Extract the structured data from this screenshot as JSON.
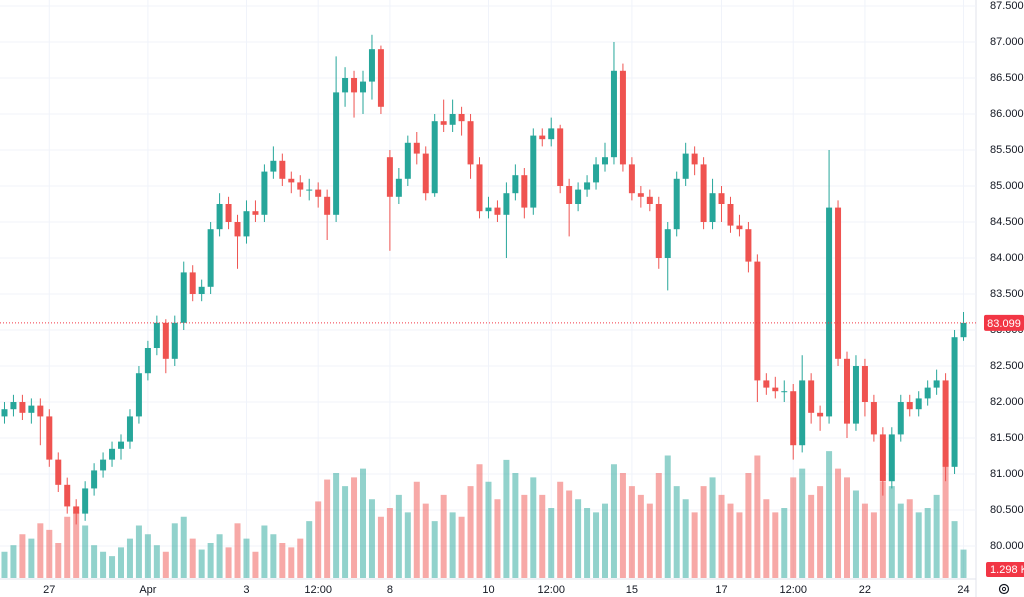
{
  "chart_data": {
    "type": "candlestick",
    "up_color": "#26a69a",
    "down_color": "#ef5350",
    "volume_up_color": "rgba(38,166,154,0.5)",
    "volume_down_color": "rgba(239,83,80,0.5)",
    "price_line_color": "#f23645",
    "grid": true,
    "ylim": [
      79.556,
      87.583
    ],
    "yticks": [
      {
        "value": 80,
        "label": "80.000"
      },
      {
        "value": 80.5,
        "label": "80.500"
      },
      {
        "value": 81,
        "label": "81.000"
      },
      {
        "value": 81.5,
        "label": "81.500"
      },
      {
        "value": 82,
        "label": "82.000"
      },
      {
        "value": 82.5,
        "label": "82.500"
      },
      {
        "value": 83,
        "label": "83.000"
      },
      {
        "value": 83.5,
        "label": "83.500"
      },
      {
        "value": 84,
        "label": "84.000"
      },
      {
        "value": 84.5,
        "label": "84.500"
      },
      {
        "value": 85,
        "label": "85.000"
      },
      {
        "value": 85.5,
        "label": "85.500"
      },
      {
        "value": 86,
        "label": "86.000"
      },
      {
        "value": 86.5,
        "label": "86.500"
      },
      {
        "value": 87,
        "label": "87.000"
      },
      {
        "value": 87.5,
        "label": "87.500"
      }
    ],
    "volume_lim": [
      0,
      8
    ],
    "last_volume_label": "1.298 K",
    "categories": [
      null,
      null,
      null,
      null,
      null,
      "27",
      null,
      null,
      null,
      null,
      null,
      null,
      null,
      null,
      null,
      null,
      "Apr",
      null,
      null,
      null,
      null,
      null,
      null,
      null,
      null,
      null,
      null,
      "3",
      null,
      null,
      null,
      null,
      null,
      null,
      null,
      "12:00",
      null,
      null,
      null,
      null,
      null,
      null,
      null,
      "8",
      null,
      null,
      null,
      null,
      null,
      null,
      null,
      null,
      null,
      null,
      "10",
      null,
      null,
      null,
      null,
      null,
      null,
      "12:00",
      null,
      null,
      null,
      null,
      null,
      null,
      null,
      null,
      "15",
      null,
      null,
      null,
      null,
      null,
      null,
      null,
      null,
      null,
      "17",
      null,
      null,
      null,
      null,
      null,
      null,
      null,
      "12:00",
      null,
      null,
      null,
      null,
      null,
      null,
      null,
      "22",
      null,
      null,
      null,
      null,
      null,
      null,
      null,
      null,
      null,
      null,
      "24"
    ],
    "open": [
      81.8,
      81.9,
      82.0,
      81.85,
      81.95,
      81.8,
      81.2,
      80.85,
      80.55,
      80.45,
      80.8,
      81.05,
      81.2,
      81.35,
      81.45,
      81.8,
      82.4,
      82.75,
      83.1,
      82.6,
      83.1,
      83.8,
      83.5,
      83.6,
      84.4,
      84.75,
      84.5,
      84.3,
      84.65,
      84.6,
      85.2,
      85.35,
      85.1,
      85.05,
      84.95,
      84.95,
      84.85,
      84.6,
      86.3,
      86.5,
      86.3,
      86.45,
      86.9,
      85.4,
      84.85,
      85.1,
      85.6,
      85.45,
      84.9,
      85.9,
      85.85,
      86.0,
      85.9,
      85.3,
      84.65,
      84.7,
      84.6,
      84.9,
      85.15,
      84.7,
      85.7,
      85.65,
      85.8,
      85.0,
      84.75,
      84.95,
      85.05,
      85.3,
      85.4,
      86.6,
      85.3,
      84.9,
      84.85,
      84.75,
      84.0,
      84.4,
      85.1,
      85.45,
      85.3,
      84.5,
      84.9,
      84.75,
      84.45,
      84.4,
      83.95,
      82.3,
      82.2,
      82.15,
      82.15,
      81.4,
      82.3,
      81.85,
      81.8,
      84.7,
      82.6,
      81.7,
      82.5,
      82.0,
      81.55,
      80.9,
      81.55,
      82.0,
      81.9,
      82.05,
      82.2,
      82.3,
      81.1,
      82.9
    ],
    "high": [
      82.0,
      82.1,
      82.1,
      82.05,
      82.05,
      81.9,
      81.3,
      80.95,
      80.65,
      80.9,
      81.15,
      81.3,
      81.45,
      81.55,
      81.9,
      82.5,
      82.85,
      83.2,
      83.15,
      83.2,
      83.95,
      83.9,
      83.7,
      84.5,
      84.9,
      84.85,
      84.6,
      84.8,
      84.8,
      85.3,
      85.55,
      85.45,
      85.2,
      85.15,
      85.1,
      85.05,
      84.95,
      86.8,
      86.65,
      86.6,
      86.6,
      87.1,
      86.95,
      85.5,
      85.25,
      85.7,
      85.75,
      85.55,
      86.0,
      86.2,
      86.2,
      86.1,
      86.0,
      85.4,
      84.85,
      84.8,
      85.05,
      85.3,
      85.25,
      85.8,
      85.8,
      85.95,
      85.85,
      85.1,
      85.05,
      85.15,
      85.4,
      85.6,
      87.0,
      86.7,
      85.4,
      85.0,
      84.95,
      84.85,
      84.5,
      85.2,
      85.6,
      85.55,
      85.4,
      85.1,
      85.0,
      84.85,
      84.6,
      84.5,
      84.05,
      82.4,
      82.35,
      82.3,
      82.25,
      82.65,
      82.4,
      81.95,
      85.5,
      84.8,
      82.7,
      82.65,
      82.6,
      82.1,
      81.65,
      81.65,
      82.1,
      82.1,
      82.15,
      82.3,
      82.45,
      82.4,
      83.0,
      83.25
    ],
    "low": [
      81.7,
      81.8,
      81.75,
      81.7,
      81.4,
      81.1,
      80.75,
      80.45,
      80.3,
      80.35,
      80.7,
      80.95,
      81.1,
      81.2,
      81.35,
      81.7,
      82.3,
      82.65,
      82.4,
      82.5,
      83.0,
      83.4,
      83.4,
      83.5,
      84.3,
      84.4,
      83.85,
      84.2,
      84.5,
      84.5,
      85.1,
      85.0,
      84.9,
      84.85,
      84.8,
      84.7,
      84.25,
      84.5,
      86.1,
      85.95,
      86.0,
      86.2,
      86.0,
      84.1,
      84.75,
      85.0,
      85.3,
      84.8,
      84.85,
      85.75,
      85.75,
      85.7,
      85.1,
      84.55,
      84.55,
      84.5,
      84.0,
      84.8,
      84.55,
      84.6,
      85.55,
      85.55,
      84.9,
      84.3,
      84.65,
      84.85,
      84.95,
      85.2,
      85.3,
      85.2,
      84.8,
      84.7,
      84.65,
      83.85,
      83.55,
      84.3,
      85.0,
      85.15,
      84.4,
      84.4,
      84.5,
      84.35,
      84.3,
      83.8,
      82.0,
      82.1,
      82.05,
      82.0,
      81.2,
      81.3,
      81.7,
      81.6,
      81.7,
      82.5,
      81.5,
      81.6,
      81.8,
      81.45,
      80.7,
      80.8,
      81.45,
      81.8,
      81.8,
      81.95,
      82.1,
      80.9,
      81.0,
      82.85
    ],
    "close": [
      81.9,
      82.0,
      81.85,
      81.95,
      81.8,
      81.2,
      80.85,
      80.55,
      80.45,
      80.8,
      81.05,
      81.2,
      81.35,
      81.45,
      81.8,
      82.4,
      82.75,
      83.1,
      82.6,
      83.1,
      83.8,
      83.5,
      83.6,
      84.4,
      84.75,
      84.5,
      84.3,
      84.65,
      84.6,
      85.2,
      85.35,
      85.1,
      85.05,
      84.95,
      84.95,
      84.85,
      84.6,
      86.3,
      86.5,
      86.3,
      86.45,
      86.9,
      86.1,
      84.85,
      85.1,
      85.6,
      85.45,
      84.9,
      85.9,
      85.85,
      86.0,
      85.9,
      85.3,
      84.65,
      84.7,
      84.6,
      84.9,
      85.15,
      84.7,
      85.7,
      85.65,
      85.8,
      85.0,
      84.75,
      84.95,
      85.05,
      85.3,
      85.4,
      86.6,
      85.3,
      84.9,
      84.85,
      84.75,
      84.0,
      84.4,
      85.1,
      85.45,
      85.3,
      84.5,
      84.9,
      84.75,
      84.45,
      84.4,
      83.95,
      82.3,
      82.2,
      82.15,
      82.15,
      81.4,
      82.3,
      81.85,
      81.8,
      84.7,
      82.6,
      81.7,
      82.5,
      82.0,
      81.55,
      80.9,
      81.55,
      82.0,
      81.9,
      82.05,
      82.2,
      82.3,
      81.1,
      82.9,
      83.099
    ],
    "volume": [
      1.2,
      1.5,
      2.0,
      1.8,
      2.5,
      2.2,
      1.6,
      2.8,
      3.0,
      2.4,
      1.5,
      1.2,
      1.0,
      1.4,
      1.8,
      2.4,
      2.0,
      1.5,
      1.2,
      2.5,
      2.8,
      1.8,
      1.3,
      1.6,
      2.0,
      1.4,
      2.5,
      1.8,
      1.2,
      2.4,
      2.0,
      1.6,
      1.4,
      1.8,
      2.6,
      3.5,
      4.5,
      4.8,
      4.2,
      4.6,
      5.0,
      3.6,
      2.8,
      3.2,
      3.8,
      3.0,
      4.4,
      3.4,
      2.6,
      3.8,
      3.0,
      2.8,
      4.2,
      5.2,
      4.4,
      3.6,
      5.4,
      4.8,
      3.8,
      4.6,
      3.8,
      3.2,
      4.4,
      4.0,
      3.6,
      3.2,
      3.0,
      3.4,
      5.2,
      4.8,
      4.2,
      3.8,
      3.4,
      4.8,
      5.6,
      4.2,
      3.6,
      3.0,
      4.2,
      4.6,
      3.8,
      3.4,
      3.0,
      4.8,
      5.6,
      3.6,
      3.0,
      3.2,
      4.6,
      5.0,
      3.8,
      4.2,
      5.8,
      5.0,
      4.6,
      4.0,
      3.4,
      3.0,
      4.4,
      4.2,
      3.4,
      3.6,
      3.0,
      3.2,
      3.8,
      5.4,
      2.6,
      1.298
    ]
  }
}
